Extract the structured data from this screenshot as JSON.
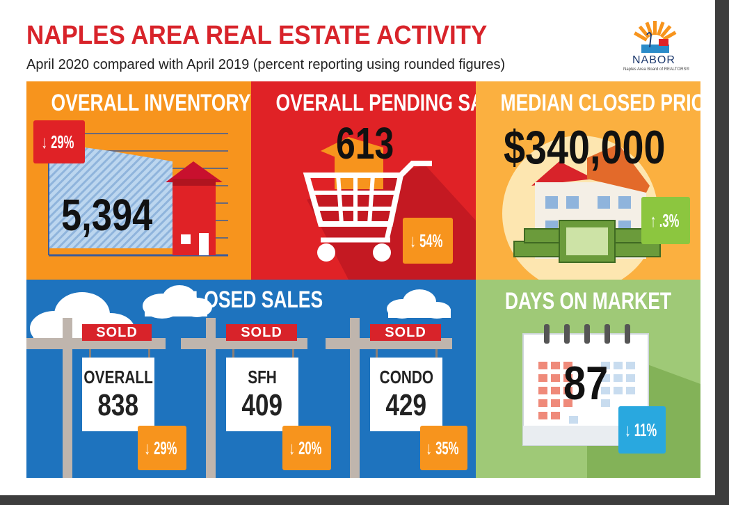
{
  "header": {
    "title": "NAPLES AREA REAL ESTATE ACTIVITY",
    "subtitle": "April 2020 compared with April 2019 (percent reporting using rounded figures)"
  },
  "logo": {
    "name": "NABOR",
    "tagline": "Naples Area Board of REALTORS®"
  },
  "panels": {
    "inventory": {
      "title": "OVERALL INVENTORY",
      "value": "5,394",
      "change": "29%",
      "direction": "down",
      "color": "#f7941d"
    },
    "pending": {
      "title": "OVERALL PENDING SALES",
      "value": "613",
      "change": "54%",
      "direction": "down",
      "color": "#e02226"
    },
    "price": {
      "title": "MEDIAN CLOSED PRICE",
      "value": "$340,000",
      "change": ".3%",
      "direction": "up",
      "color": "#fbb040"
    },
    "closed": {
      "title": "CLOSED SALES",
      "color": "#1e73be",
      "signs": [
        {
          "sold": "SOLD",
          "label": "OVERALL",
          "value": "838",
          "change": "29%",
          "direction": "down"
        },
        {
          "sold": "SOLD",
          "label": "SFH",
          "value": "409",
          "change": "20%",
          "direction": "down"
        },
        {
          "sold": "SOLD",
          "label": "CONDO",
          "value": "429",
          "change": "35%",
          "direction": "down"
        }
      ]
    },
    "dom": {
      "title": "DAYS ON MARKET",
      "value": "87",
      "change": "11%",
      "direction": "down",
      "color": "#8cc63f"
    }
  },
  "icons": {
    "down": "↓",
    "up": "↑"
  }
}
